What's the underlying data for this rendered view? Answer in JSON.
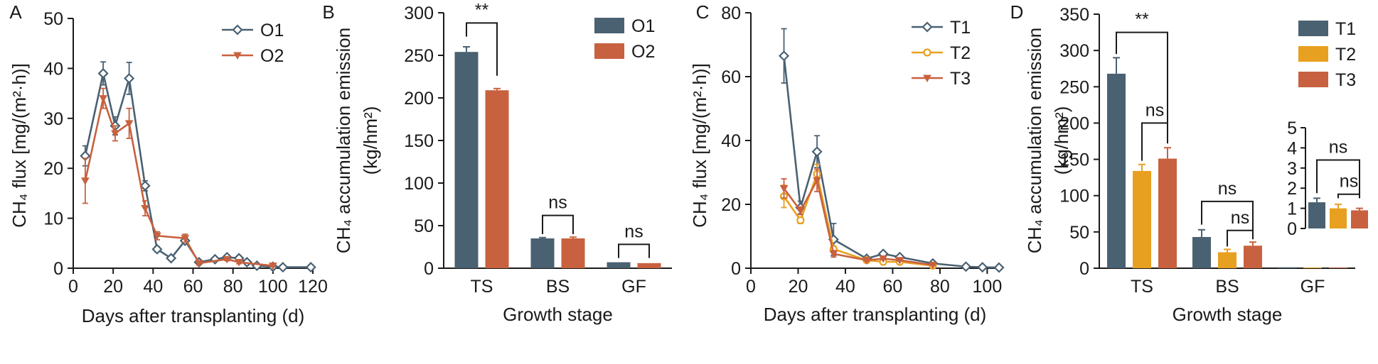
{
  "colors": {
    "navy": "#4a6172",
    "rust": "#c8613f",
    "orange": "#e8a020",
    "axis": "#1a1a1a"
  },
  "chart_data": [
    {
      "panel": "A",
      "type": "line",
      "xlabel": "Days after transplanting (d)",
      "ylabel": "CH₄ flux [mg/(m²·h)]",
      "xlim": [
        0,
        120
      ],
      "ylim": [
        0,
        50
      ],
      "xticks": [
        0,
        20,
        40,
        60,
        80,
        100,
        120
      ],
      "yticks": [
        0,
        10,
        20,
        30,
        40,
        50
      ],
      "legend_position": "top-right",
      "series": [
        {
          "name": "O1",
          "color": "#4a6172",
          "marker": "diamond-open",
          "x": [
            6,
            15,
            21,
            28,
            36,
            42,
            49,
            56,
            63,
            71,
            77,
            83,
            87,
            92,
            100,
            105,
            119
          ],
          "y": [
            22.5,
            39,
            28.5,
            38,
            16.5,
            3.8,
            2,
            5.5,
            1.2,
            1.8,
            2.2,
            2,
            1.2,
            0.5,
            0.3,
            0.2,
            0.2
          ],
          "err": [
            2,
            2.3,
            1.8,
            3.2,
            1,
            0.5,
            0.3,
            0.5,
            0.3,
            0.3,
            0.3,
            0.3,
            0.3,
            0.2,
            0.2,
            0.1,
            0.1
          ]
        },
        {
          "name": "O2",
          "color": "#c8613f",
          "marker": "triangle-filled",
          "x": [
            6,
            15,
            21,
            28,
            36,
            42,
            56,
            63,
            77,
            83,
            100
          ],
          "y": [
            17.5,
            34,
            27,
            29,
            12,
            6.5,
            6,
            1,
            1.8,
            1.2,
            0.5
          ],
          "err": [
            4.5,
            2,
            1.5,
            3,
            1.5,
            0.8,
            0.8,
            0.3,
            0.3,
            0.3,
            0.2
          ]
        }
      ]
    },
    {
      "panel": "B",
      "type": "bar",
      "xlabel": "Growth stage",
      "ylabel_line1": "CH₄ accumulation emission",
      "ylabel_line2": "(kg/hm²)",
      "ylim": [
        0,
        300
      ],
      "yticks": [
        0,
        50,
        100,
        150,
        200,
        250,
        300
      ],
      "categories": [
        "TS",
        "BS",
        "GF"
      ],
      "legend_position": "top-right",
      "series": [
        {
          "name": "O1",
          "color": "#4a6172",
          "values": [
            254,
            35,
            7
          ],
          "err": [
            6,
            1,
            0.5
          ]
        },
        {
          "name": "O2",
          "color": "#c8613f",
          "values": [
            209,
            35,
            6
          ],
          "err": [
            2,
            1.5,
            0.5
          ]
        }
      ],
      "annotations": [
        {
          "category": "TS",
          "label": "**"
        },
        {
          "category": "BS",
          "label": "ns"
        },
        {
          "category": "GF",
          "label": "ns"
        }
      ]
    },
    {
      "panel": "C",
      "type": "line",
      "xlabel": "Days after transplanting (d)",
      "ylabel": "CH₄ flux [mg/(m²·h)]",
      "xlim": [
        0,
        105
      ],
      "ylim": [
        0,
        80
      ],
      "xticks": [
        0,
        20,
        40,
        60,
        80,
        100
      ],
      "yticks": [
        0,
        20,
        40,
        60,
        80
      ],
      "legend_position": "top-right",
      "series": [
        {
          "name": "T1",
          "color": "#4a6172",
          "marker": "diamond-open",
          "x": [
            14,
            21,
            28,
            35,
            49,
            56,
            63,
            77,
            91,
            98,
            105
          ],
          "y": [
            66.5,
            19,
            36.5,
            9,
            3,
            4.5,
            3.5,
            1.5,
            0.5,
            0.3,
            0.2
          ],
          "err": [
            8.5,
            2,
            5,
            5,
            0.5,
            0.5,
            0.5,
            0.3,
            0.2,
            0.1,
            0.1
          ]
        },
        {
          "name": "T2",
          "color": "#e8a020",
          "marker": "circle-open",
          "x": [
            14,
            21,
            28,
            35,
            49,
            56,
            63,
            77
          ],
          "y": [
            22.5,
            15,
            29.5,
            6,
            2.5,
            2,
            2,
            0.8
          ],
          "err": [
            3.5,
            1,
            3,
            1,
            0.3,
            0.3,
            0.3,
            0.2
          ]
        },
        {
          "name": "T3",
          "color": "#c8613f",
          "marker": "triangle-filled",
          "x": [
            14,
            21,
            28,
            35,
            49,
            56,
            63,
            77
          ],
          "y": [
            25,
            18,
            27.5,
            4.5,
            2.5,
            3,
            2.5,
            1
          ],
          "err": [
            3,
            1.2,
            3.5,
            1,
            0.3,
            0.3,
            0.3,
            0.2
          ]
        }
      ]
    },
    {
      "panel": "D",
      "type": "bar",
      "xlabel": "Growth stage",
      "ylabel_line1": "CH₄ accumulation emission",
      "ylabel_line2": "(kg/hm²)",
      "ylim": [
        0,
        350
      ],
      "yticks": [
        0,
        50,
        100,
        150,
        200,
        250,
        300,
        350
      ],
      "categories": [
        "TS",
        "BS",
        "GF"
      ],
      "legend_position": "top-right",
      "series": [
        {
          "name": "T1",
          "color": "#4a6172",
          "values": [
            268,
            43,
            1.3
          ],
          "err": [
            22,
            10,
            0.2
          ]
        },
        {
          "name": "T2",
          "color": "#e8a020",
          "values": [
            134,
            22,
            1.0
          ],
          "err": [
            9,
            4,
            0.2
          ]
        },
        {
          "name": "T3",
          "color": "#c8613f",
          "values": [
            151,
            31,
            0.9
          ],
          "err": [
            15,
            5,
            0.1
          ]
        }
      ],
      "annotations": [
        {
          "category": "TS",
          "label": "**"
        },
        {
          "category": "TS",
          "label": "ns"
        },
        {
          "category": "BS",
          "label": "ns"
        },
        {
          "category": "BS",
          "label": "ns"
        },
        {
          "category": "GF",
          "label": "ns"
        },
        {
          "category": "GF",
          "label": "ns"
        }
      ],
      "inset": {
        "category": "GF",
        "ylim": [
          0,
          5
        ],
        "yticks": [
          0,
          1,
          2,
          3,
          4,
          5
        ]
      }
    }
  ],
  "panel_labels": [
    "A",
    "B",
    "C",
    "D"
  ]
}
